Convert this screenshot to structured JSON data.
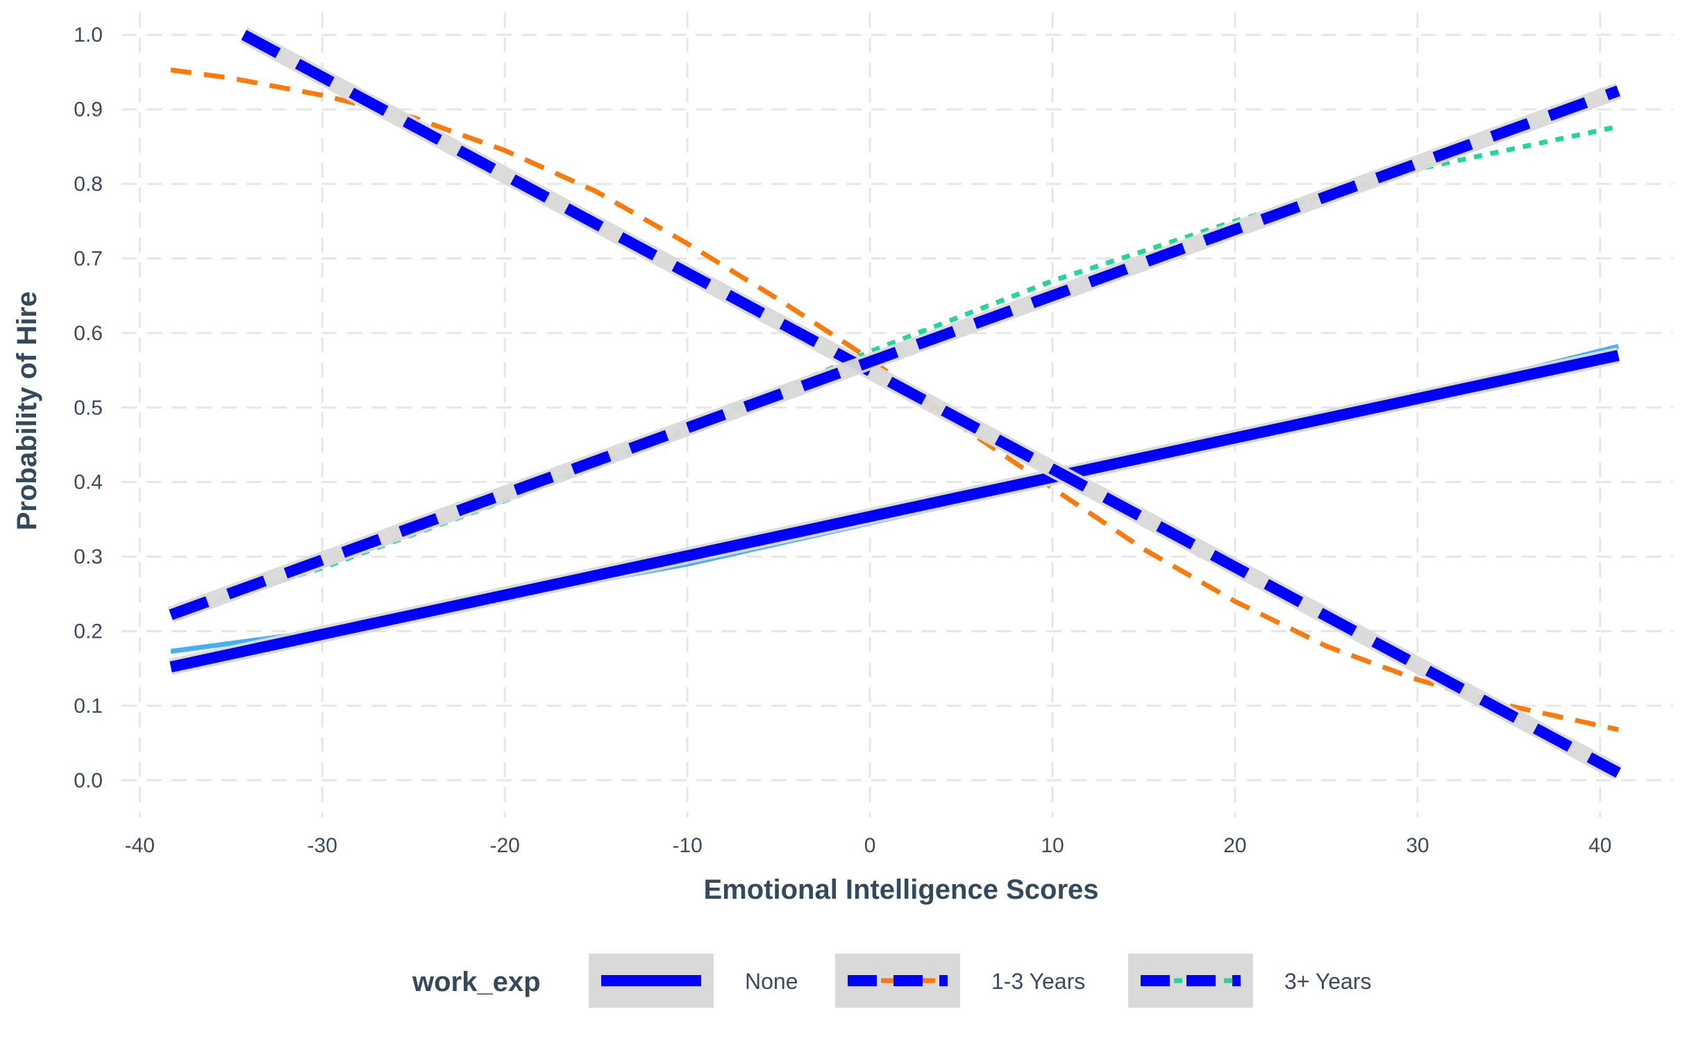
{
  "chart_data": {
    "type": "line",
    "xlabel": "Emotional Intelligence Scores",
    "ylabel": "Probability of Hire",
    "xlim": [
      -41,
      44
    ],
    "ylim": [
      -0.05,
      1.03
    ],
    "xticks": [
      -40,
      -30,
      -20,
      -10,
      0,
      10,
      20,
      30,
      40
    ],
    "yticks": [
      0.0,
      0.1,
      0.2,
      0.3,
      0.4,
      0.5,
      0.6,
      0.7,
      0.8,
      0.9,
      1.0
    ],
    "xtick_labels": [
      "-40",
      "-30",
      "-20",
      "-10",
      "0",
      "10",
      "20",
      "30",
      "40"
    ],
    "ytick_labels": [
      "0.0",
      "0.1",
      "0.2",
      "0.3",
      "0.4",
      "0.5",
      "0.6",
      "0.7",
      "0.8",
      "0.9",
      "1.0"
    ],
    "grid": true,
    "legend": {
      "title": "work_exp",
      "position": "bottom",
      "entries": [
        "None",
        "1-3 Years",
        "3+ Years"
      ]
    },
    "series": [
      {
        "name": "None",
        "kind": "fitted-curve",
        "color": "#45b0f0",
        "dash": "solid",
        "x": [
          -38.3,
          -30,
          -20,
          -10,
          0,
          10,
          20,
          30,
          41
        ],
        "y": [
          0.173,
          0.2,
          0.245,
          0.29,
          0.345,
          0.4,
          0.46,
          0.515,
          0.582
        ]
      },
      {
        "name": "1-3 Years",
        "kind": "fitted-curve",
        "color": "#f97b0e",
        "dash": "dashed",
        "x": [
          -38.3,
          -35,
          -30,
          -25,
          -20,
          -15,
          -10,
          -5,
          0,
          5,
          10,
          15,
          20,
          25,
          30,
          35,
          41
        ],
        "y": [
          0.953,
          0.942,
          0.919,
          0.889,
          0.845,
          0.79,
          0.72,
          0.645,
          0.565,
          0.475,
          0.392,
          0.31,
          0.24,
          0.18,
          0.135,
          0.1,
          0.068
        ]
      },
      {
        "name": "3+ Years",
        "kind": "fitted-curve",
        "color": "#25d59b",
        "dash": "dotted",
        "x": [
          -38.3,
          -30,
          -20,
          -10,
          0,
          10,
          20,
          30,
          41
        ],
        "y": [
          0.222,
          0.285,
          0.375,
          0.47,
          0.575,
          0.67,
          0.75,
          0.82,
          0.877
        ]
      },
      {
        "name": "None",
        "kind": "linear-fit",
        "color": "#0000ff",
        "halo": "#d9d9d9",
        "dash": "solid",
        "x": [
          -38.3,
          41
        ],
        "y": [
          0.152,
          0.57
        ]
      },
      {
        "name": "1-3 Years",
        "kind": "linear-fit",
        "color": "#0000ff",
        "halo": "#d9d9d9",
        "dash": "dashed",
        "x": [
          -34.3,
          41
        ],
        "y": [
          1.0,
          0.01
        ]
      },
      {
        "name": "3+ Years",
        "kind": "linear-fit",
        "color": "#0000ff",
        "halo": "#d9d9d9",
        "dash": "dashed",
        "x": [
          -38.3,
          41
        ],
        "y": [
          0.222,
          0.925
        ]
      }
    ]
  }
}
